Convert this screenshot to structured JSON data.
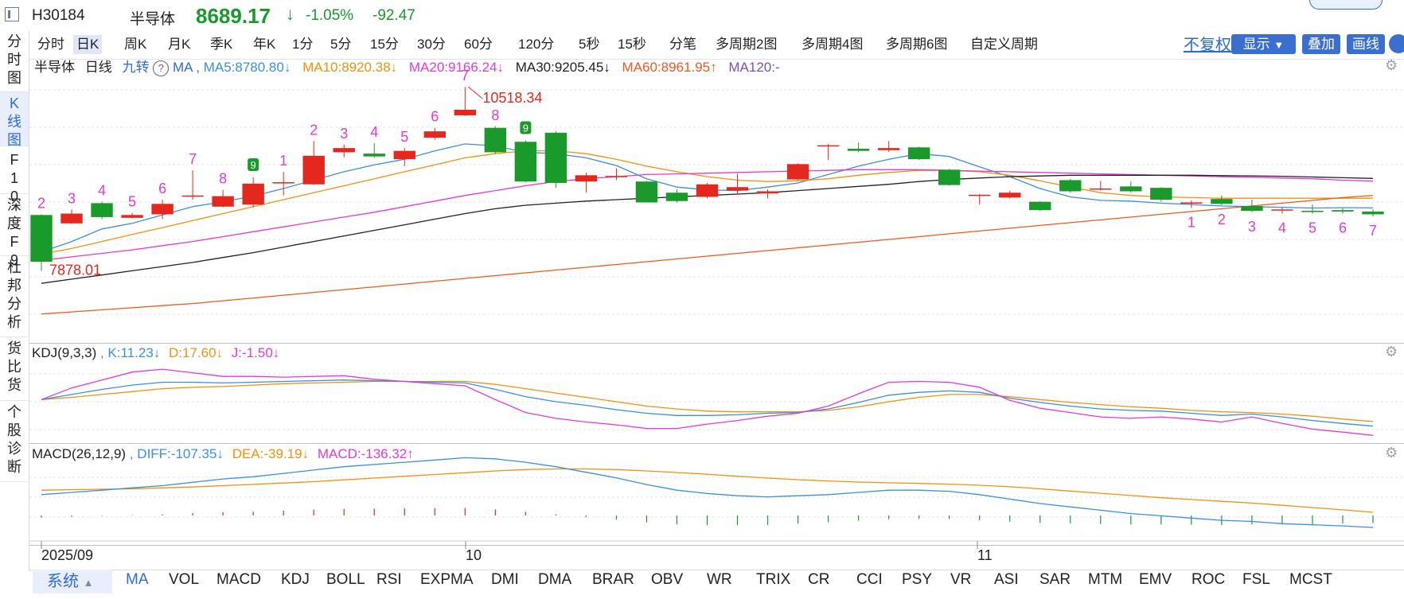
{
  "header": {
    "code": "H30184",
    "name": "半导体",
    "price": "8689.17",
    "arrow": "↓",
    "change_pct": "-1.05%",
    "change": "-92.47",
    "down_color": "#1a9a2a"
  },
  "left_nav": {
    "items": [
      {
        "label": "分时图"
      },
      {
        "label": "K线图"
      },
      {
        "label": "F10"
      },
      {
        "label": "深度F9"
      },
      {
        "label": "杜邦分析"
      },
      {
        "label": "货比货"
      },
      {
        "label": "个股诊断"
      }
    ],
    "active_index": 1
  },
  "period_tabs": {
    "items": [
      "分时",
      "日K",
      "周K",
      "月K",
      "季K",
      "年K",
      "1分",
      "5分",
      "15分",
      "30分",
      "60分",
      "120分",
      "5秒",
      "15秒",
      "分笔",
      "多周期2图",
      "多周期4图",
      "多周期6图",
      "自定义周期"
    ],
    "active": "日K"
  },
  "right_controls": {
    "adjust": "不复权",
    "display": "显示",
    "overlay": "叠加",
    "draw": "画线"
  },
  "main_legend": {
    "name": "半导体",
    "period": "日线",
    "jiuzhuan": "九转",
    "help": "?",
    "ma_label": "MA ,",
    "ma5": "MA5:8780.80↓",
    "ma10": "MA10:8920.38↓",
    "ma20": "MA20:9166.24↓",
    "ma30": "MA30:9205.45↓",
    "ma60": "MA60:8961.95↑",
    "ma120": "MA120:-",
    "colors": {
      "ma5": "#3b8fe0",
      "ma10": "#f0920f",
      "ma20": "#e23ad8",
      "ma30": "#222222",
      "ma60": "#ef5a1e",
      "ma120": "#7a4fb8"
    }
  },
  "kdj_legend": {
    "label": "KDJ(9,3,3)",
    "k": ", K:11.23↓",
    "d": "D:17.60↓",
    "j": "J:-1.50↓"
  },
  "macd_legend": {
    "label": "MACD(26,12,9)",
    "diff": ", DIFF:-107.35↓",
    "dea": "DEA:-39.19↓",
    "macd": "MACD:-136.32↑"
  },
  "annotations": {
    "high": "10518.34",
    "low": "7878.01",
    "high_tag": "7",
    "low_prefix": "2"
  },
  "dates": {
    "start": "2025/09",
    "oct": "10",
    "nov": "11"
  },
  "indicator_bar": {
    "system": "系统",
    "items": [
      "MA",
      "VOL",
      "MACD",
      "KDJ",
      "BOLL",
      "RSI",
      "EXPMA",
      "DMI",
      "DMA",
      "BRAR",
      "OBV",
      "WR",
      "TRIX",
      "CR",
      "CCI",
      "PSY",
      "VR",
      "ASI",
      "SAR",
      "MTM",
      "EMV",
      "ROC",
      "FSL",
      "MCST"
    ],
    "active": "MA"
  },
  "chart_data": {
    "type": "candlestick",
    "period": "daily",
    "candles": [
      {
        "o": 8680,
        "c": 8010,
        "h": 8690,
        "l": 7878
      },
      {
        "o": 8560,
        "c": 8700,
        "h": 8760,
        "l": 8550
      },
      {
        "o": 8850,
        "c": 8650,
        "h": 8870,
        "l": 8620
      },
      {
        "o": 8640,
        "c": 8680,
        "h": 8710,
        "l": 8630
      },
      {
        "o": 8690,
        "c": 8840,
        "h": 8900,
        "l": 8620
      },
      {
        "o": 8950,
        "c": 8960,
        "h": 9320,
        "l": 8900
      },
      {
        "o": 8800,
        "c": 8950,
        "h": 9040,
        "l": 8790
      },
      {
        "o": 8830,
        "c": 9130,
        "h": 9220,
        "l": 8790
      },
      {
        "o": 9140,
        "c": 9150,
        "h": 9300,
        "l": 8960
      },
      {
        "o": 9120,
        "c": 9530,
        "h": 9740,
        "l": 9110
      },
      {
        "o": 9580,
        "c": 9640,
        "h": 9690,
        "l": 9510
      },
      {
        "o": 9560,
        "c": 9520,
        "h": 9710,
        "l": 9500
      },
      {
        "o": 9480,
        "c": 9600,
        "h": 9640,
        "l": 9380
      },
      {
        "o": 9790,
        "c": 9880,
        "h": 9930,
        "l": 9760
      },
      {
        "o": 10110,
        "c": 10190,
        "h": 10518.34,
        "l": 10100
      },
      {
        "o": 9930,
        "c": 9580,
        "h": 9950,
        "l": 9560
      },
      {
        "o": 9730,
        "c": 9160,
        "h": 9750,
        "l": 9150
      },
      {
        "o": 9860,
        "c": 9140,
        "h": 9880,
        "l": 9070
      },
      {
        "o": 9160,
        "c": 9250,
        "h": 9290,
        "l": 9000
      },
      {
        "o": 9240,
        "c": 9240,
        "h": 9350,
        "l": 9180
      },
      {
        "o": 9160,
        "c": 8860,
        "h": 9170,
        "l": 8860
      },
      {
        "o": 9000,
        "c": 8880,
        "h": 9050,
        "l": 8860
      },
      {
        "o": 8940,
        "c": 9120,
        "h": 9140,
        "l": 8920
      },
      {
        "o": 9030,
        "c": 9080,
        "h": 9270,
        "l": 8980
      },
      {
        "o": 8990,
        "c": 9020,
        "h": 9050,
        "l": 8920
      },
      {
        "o": 9190,
        "c": 9410,
        "h": 9420,
        "l": 9180
      },
      {
        "o": 9680,
        "c": 9680,
        "h": 9700,
        "l": 9470
      },
      {
        "o": 9630,
        "c": 9600,
        "h": 9720,
        "l": 9580
      },
      {
        "o": 9610,
        "c": 9640,
        "h": 9740,
        "l": 9590
      },
      {
        "o": 9650,
        "c": 9480,
        "h": 9660,
        "l": 9470
      },
      {
        "o": 9330,
        "c": 9110,
        "h": 9340,
        "l": 9100
      },
      {
        "o": 8970,
        "c": 8970,
        "h": 8980,
        "l": 8830
      },
      {
        "o": 8930,
        "c": 9000,
        "h": 9030,
        "l": 8920
      },
      {
        "o": 8870,
        "c": 8750,
        "h": 8880,
        "l": 8740
      },
      {
        "o": 9180,
        "c": 9020,
        "h": 9200,
        "l": 9000
      },
      {
        "o": 9060,
        "c": 9060,
        "h": 9170,
        "l": 9030
      },
      {
        "o": 9090,
        "c": 9020,
        "h": 9160,
        "l": 9000
      },
      {
        "o": 9070,
        "c": 8900,
        "h": 9080,
        "l": 8870
      },
      {
        "o": 8860,
        "c": 8860,
        "h": 8890,
        "l": 8780
      },
      {
        "o": 8910,
        "c": 8840,
        "h": 8960,
        "l": 8820
      },
      {
        "o": 8810,
        "c": 8740,
        "h": 8900,
        "l": 8720
      },
      {
        "o": 8760,
        "c": 8760,
        "h": 8790,
        "l": 8700
      },
      {
        "o": 8740,
        "c": 8730,
        "h": 8830,
        "l": 8700
      },
      {
        "o": 8750,
        "c": 8730,
        "h": 8780,
        "l": 8700
      },
      {
        "o": 8730,
        "c": 8690,
        "h": 8760,
        "l": 8660
      }
    ],
    "nine_turn_up": [
      "2",
      "3",
      "4",
      "5",
      "6",
      "7",
      "8",
      "9",
      "1",
      "2",
      "3",
      "4",
      "5",
      "6",
      "7",
      "8",
      "9"
    ],
    "nine_turn_down": [
      "1",
      "2",
      "3",
      "4",
      "5",
      "6",
      "7"
    ],
    "ma_series": [
      {
        "name": "MA5",
        "values": [
          8150,
          8300,
          8480,
          8560,
          8680,
          8800,
          8870,
          8950,
          9060,
          9180,
          9300,
          9400,
          9480,
          9600,
          9700,
          9670,
          9580,
          9560,
          9500,
          9390,
          9200,
          9080,
          9040,
          9030,
          9080,
          9140,
          9260,
          9380,
          9480,
          9560,
          9520,
          9370,
          9230,
          9060,
          8940,
          8890,
          8880,
          8850,
          8830,
          8810,
          8800,
          8790,
          8780,
          8785,
          8781
        ]
      },
      {
        "name": "MA10",
        "values": [
          8120,
          8200,
          8300,
          8400,
          8500,
          8600,
          8700,
          8800,
          8900,
          9000,
          9100,
          9200,
          9300,
          9400,
          9500,
          9560,
          9600,
          9600,
          9560,
          9480,
          9380,
          9300,
          9230,
          9180,
          9160,
          9170,
          9200,
          9250,
          9290,
          9320,
          9320,
          9300,
          9250,
          9170,
          9080,
          9000,
          8960,
          8940,
          8930,
          8920,
          8920,
          8920,
          8920,
          8920,
          8920
        ]
      },
      {
        "name": "MA20",
        "values": [
          8030,
          8080,
          8130,
          8180,
          8240,
          8300,
          8370,
          8440,
          8510,
          8580,
          8650,
          8720,
          8800,
          8880,
          8960,
          9030,
          9100,
          9160,
          9200,
          9230,
          9260,
          9270,
          9280,
          9290,
          9300,
          9310,
          9320,
          9330,
          9330,
          9330,
          9320,
          9310,
          9300,
          9290,
          9280,
          9270,
          9260,
          9250,
          9240,
          9230,
          9220,
          9210,
          9200,
          9180,
          9166
        ]
      },
      {
        "name": "MA30",
        "values": [
          7700,
          7760,
          7820,
          7880,
          7940,
          8000,
          8070,
          8140,
          8220,
          8300,
          8380,
          8460,
          8540,
          8620,
          8700,
          8770,
          8820,
          8850,
          8880,
          8900,
          8920,
          8940,
          8960,
          8980,
          9000,
          9030,
          9060,
          9090,
          9120,
          9160,
          9190,
          9210,
          9230,
          9240,
          9250,
          9250,
          9250,
          9250,
          9250,
          9245,
          9240,
          9235,
          9225,
          9215,
          9205
        ]
      },
      {
        "name": "MA60",
        "values": [
          7260,
          7290,
          7320,
          7350,
          7380,
          7410,
          7450,
          7490,
          7530,
          7570,
          7610,
          7650,
          7690,
          7730,
          7770,
          7810,
          7850,
          7890,
          7930,
          7970,
          8010,
          8050,
          8090,
          8130,
          8170,
          8210,
          8250,
          8290,
          8330,
          8370,
          8410,
          8450,
          8490,
          8530,
          8570,
          8610,
          8650,
          8690,
          8730,
          8770,
          8810,
          8850,
          8890,
          8930,
          8962
        ]
      }
    ],
    "kdj": {
      "K": [
        48,
        55,
        62,
        68,
        72,
        72,
        71,
        72,
        73,
        74,
        75,
        74,
        73,
        72,
        71,
        62,
        52,
        45,
        40,
        34,
        29,
        26,
        26,
        27,
        29,
        30,
        35,
        44,
        54,
        58,
        60,
        58,
        50,
        44,
        39,
        35,
        33,
        32,
        29,
        26,
        28,
        24,
        19,
        15,
        11.23
      ],
      "D": [
        48,
        51,
        55,
        59,
        63,
        65,
        66,
        68,
        70,
        71,
        72,
        73,
        73,
        73,
        73,
        69,
        63,
        57,
        51,
        45,
        39,
        35,
        32,
        31,
        31,
        31,
        33,
        38,
        45,
        51,
        55,
        55,
        52,
        48,
        44,
        41,
        38,
        36,
        33,
        31,
        30,
        28,
        25,
        21,
        17.6
      ],
      "J": [
        48,
        64,
        75,
        86,
        90,
        85,
        80,
        80,
        79,
        80,
        81,
        76,
        73,
        70,
        67,
        48,
        30,
        22,
        17,
        13,
        8,
        8,
        14,
        19,
        25,
        29,
        39,
        56,
        72,
        73,
        72,
        65,
        47,
        36,
        30,
        24,
        22,
        24,
        21,
        17,
        24,
        15,
        7,
        3,
        -1.5
      ]
    },
    "macd": {
      "DIFF": [
        40,
        50,
        60,
        70,
        80,
        95,
        110,
        120,
        135,
        150,
        165,
        175,
        185,
        195,
        205,
        200,
        185,
        165,
        140,
        115,
        85,
        60,
        45,
        35,
        30,
        35,
        40,
        50,
        60,
        60,
        55,
        40,
        20,
        0,
        -15,
        -30,
        -45,
        -55,
        -65,
        -75,
        -80,
        -90,
        -95,
        -100,
        -107.35
      ],
      "DEA": [
        60,
        62,
        64,
        66,
        70,
        74,
        80,
        86,
        92,
        98,
        106,
        114,
        122,
        130,
        138,
        146,
        152,
        155,
        155,
        152,
        146,
        139,
        131,
        122,
        114,
        107,
        101,
        96,
        93,
        90,
        87,
        82,
        75,
        66,
        56,
        46,
        36,
        26,
        18,
        10,
        2,
        -8,
        -18,
        -28,
        -39.19
      ],
      "MACD": [
        -40,
        -24,
        -8,
        8,
        20,
        42,
        60,
        68,
        86,
        104,
        118,
        122,
        126,
        130,
        134,
        108,
        66,
        20,
        -30,
        -74,
        -122,
        -158,
        -172,
        -174,
        -168,
        -144,
        -122,
        -92,
        -66,
        -60,
        -64,
        -84,
        -110,
        -132,
        -142,
        -152,
        -162,
        -162,
        -166,
        -170,
        -164,
        -164,
        -154,
        -144,
        -136.32
      ]
    }
  }
}
